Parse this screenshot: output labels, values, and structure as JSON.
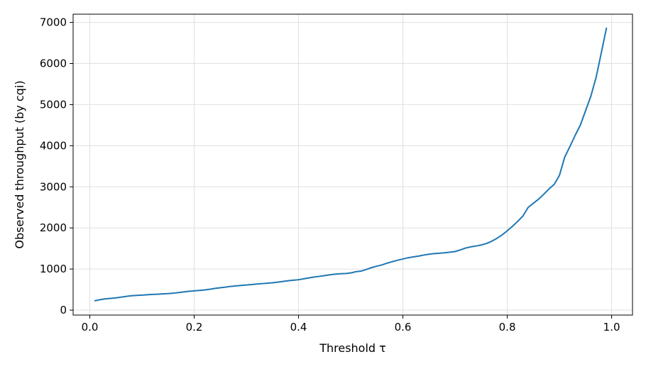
{
  "chart_data": {
    "type": "line",
    "title": "",
    "xlabel": "Threshold τ",
    "ylabel": "Observed throughput (by cqi)",
    "xlim": [
      -0.032,
      1.04
    ],
    "ylim": [
      -120,
      7200
    ],
    "xticks": [
      0.0,
      0.2,
      0.4,
      0.6,
      0.8,
      1.0
    ],
    "xtick_labels": [
      "0.0",
      "0.2",
      "0.4",
      "0.6",
      "0.8",
      "1.0"
    ],
    "yticks": [
      0,
      1000,
      2000,
      3000,
      4000,
      5000,
      6000,
      7000
    ],
    "ytick_labels": [
      "0",
      "1000",
      "2000",
      "3000",
      "4000",
      "5000",
      "6000",
      "7000"
    ],
    "grid": true,
    "legend": "none",
    "colors": {
      "line": "#1f77b4",
      "grid": "#e0e0e0",
      "axes": "#000000"
    },
    "series": [
      {
        "x": [
          0.01,
          0.02,
          0.03,
          0.04,
          0.05,
          0.06,
          0.07,
          0.08,
          0.09,
          0.1,
          0.11,
          0.12,
          0.13,
          0.14,
          0.15,
          0.16,
          0.17,
          0.18,
          0.19,
          0.2,
          0.21,
          0.22,
          0.23,
          0.24,
          0.25,
          0.26,
          0.27,
          0.28,
          0.29,
          0.3,
          0.31,
          0.32,
          0.33,
          0.34,
          0.35,
          0.36,
          0.37,
          0.38,
          0.39,
          0.4,
          0.41,
          0.42,
          0.43,
          0.44,
          0.45,
          0.46,
          0.47,
          0.48,
          0.49,
          0.5,
          0.51,
          0.52,
          0.53,
          0.54,
          0.55,
          0.56,
          0.57,
          0.58,
          0.59,
          0.6,
          0.61,
          0.62,
          0.63,
          0.64,
          0.65,
          0.66,
          0.67,
          0.68,
          0.69,
          0.7,
          0.71,
          0.72,
          0.73,
          0.74,
          0.75,
          0.76,
          0.77,
          0.78,
          0.79,
          0.8,
          0.81,
          0.82,
          0.83,
          0.84,
          0.85,
          0.86,
          0.87,
          0.88,
          0.89,
          0.9,
          0.91,
          0.92,
          0.93,
          0.94,
          0.95,
          0.96,
          0.97,
          0.98,
          0.99
        ],
        "values": [
          230,
          255,
          275,
          285,
          298,
          315,
          335,
          350,
          358,
          365,
          375,
          382,
          388,
          395,
          402,
          412,
          428,
          443,
          458,
          470,
          480,
          490,
          508,
          530,
          545,
          560,
          578,
          590,
          600,
          612,
          622,
          635,
          645,
          655,
          665,
          680,
          698,
          715,
          728,
          740,
          762,
          785,
          805,
          822,
          840,
          860,
          875,
          885,
          890,
          905,
          935,
          950,
          990,
          1035,
          1070,
          1100,
          1145,
          1180,
          1215,
          1245,
          1275,
          1295,
          1315,
          1340,
          1360,
          1375,
          1385,
          1395,
          1410,
          1425,
          1465,
          1510,
          1540,
          1560,
          1585,
          1620,
          1675,
          1745,
          1830,
          1930,
          2040,
          2160,
          2290,
          2500,
          2600,
          2700,
          2820,
          2950,
          3060,
          3280,
          3720,
          3980,
          4250,
          4500,
          4850,
          5200,
          5650,
          6250,
          6860
        ]
      }
    ]
  }
}
